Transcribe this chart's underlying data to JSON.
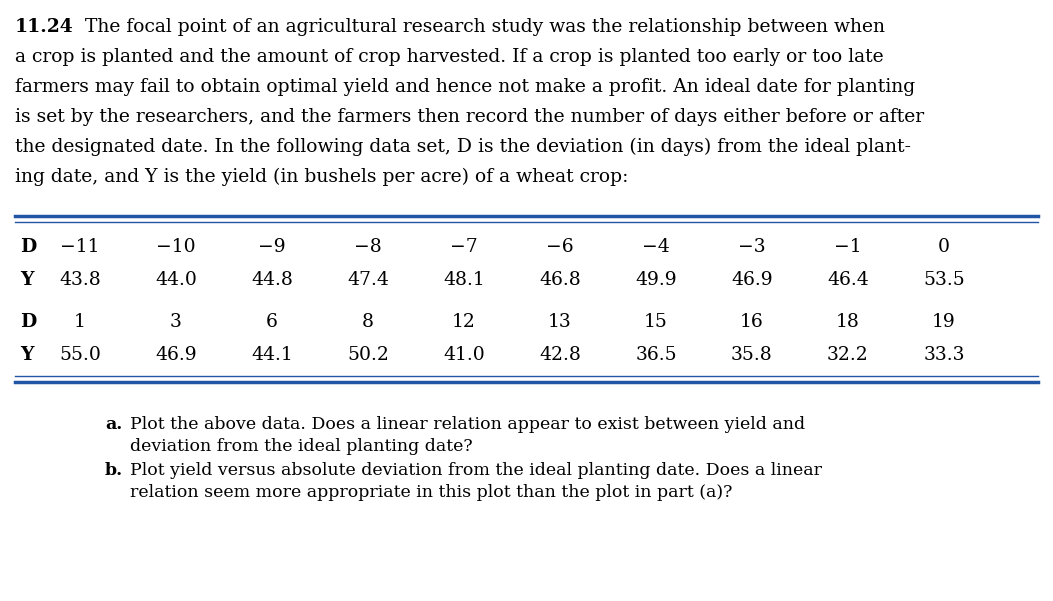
{
  "problem_number": "11.24",
  "intro_lines": [
    "The focal point of an agricultural research study was the relationship between when",
    "a crop is planted and the amount of crop harvested. If a crop is planted too early or too late",
    "farmers may fail to obtain optimal yield and hence not make a profit. An ideal date for planting",
    "is set by the researchers, and the farmers then record the number of days either before or after",
    "the designated date. In the following data set, D is the deviation (in days) from the ideal plant-",
    "ing date, and Y is the yield (in bushels per acre) of a wheat crop:"
  ],
  "D_row1": [
    -11,
    -10,
    -9,
    -8,
    -7,
    -6,
    -4,
    -3,
    -1,
    0
  ],
  "Y_row1": [
    43.8,
    44.0,
    44.8,
    47.4,
    48.1,
    46.8,
    49.9,
    46.9,
    46.4,
    53.5
  ],
  "D_row2": [
    1,
    3,
    6,
    8,
    12,
    13,
    15,
    16,
    18,
    19
  ],
  "Y_row2": [
    55.0,
    46.9,
    44.1,
    50.2,
    41.0,
    42.8,
    36.5,
    35.8,
    32.2,
    33.3
  ],
  "part_a_line1": "Plot the above data. Does a linear relation appear to exist between yield and",
  "part_a_line2": "deviation from the ideal planting date?",
  "part_b_line1": "Plot yield versus absolute deviation from the ideal planting date. Does a linear",
  "part_b_line2": "relation seem more appropriate in this plot than the plot in part (a)?",
  "table_line_color": "#2255a4",
  "background_color": "#ffffff",
  "text_color": "#000000",
  "fig_width": 10.53,
  "fig_height": 6.01,
  "dpi": 100
}
